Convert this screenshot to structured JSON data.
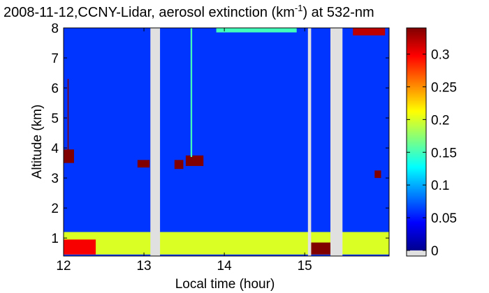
{
  "chart_data": {
    "type": "heatmap",
    "title": {
      "prefix": "2008-11-12,CCNY-Lidar, aerosol extinction (km",
      "superscript": "-1",
      "suffix": ") at 532-nm"
    },
    "xlabel": "Local time (hour)",
    "ylabel": "Altitude (km)",
    "xlim": [
      12,
      16.05
    ],
    "ylim": [
      0.4,
      8
    ],
    "xticks": [
      "12",
      "13",
      "14",
      "15"
    ],
    "yticks": [
      "1",
      "2",
      "3",
      "4",
      "5",
      "6",
      "7",
      "8"
    ],
    "grid": false,
    "colormap": "jet",
    "colorbar": {
      "range": [
        0,
        0.34
      ],
      "ticks": [
        "0",
        "0.05",
        "0.1",
        "0.15",
        "0.2",
        "0.25",
        "0.3"
      ]
    },
    "background_value": 0.06,
    "missing_data_hours": [
      [
        13.08,
        13.2
      ],
      [
        15.04,
        15.08
      ],
      [
        15.32,
        15.47
      ]
    ],
    "features": [
      {
        "name": "boundary layer",
        "time": [
          12.0,
          16.05
        ],
        "altitude": [
          0.45,
          1.2
        ],
        "value": 0.2
      },
      {
        "name": "surface aerosol 12.0-12.4",
        "time": [
          12.0,
          12.4
        ],
        "altitude": [
          0.45,
          0.95
        ],
        "value": 0.3
      },
      {
        "name": "surface aerosol 15.08-15.32",
        "time": [
          15.08,
          15.32
        ],
        "altitude": [
          0.45,
          0.85
        ],
        "value": 0.34
      },
      {
        "name": "cloud 12.0",
        "time": [
          12.0,
          12.13
        ],
        "altitude": [
          3.5,
          3.95
        ],
        "value": 0.34
      },
      {
        "name": "cloud 12.94",
        "time": [
          12.92,
          13.07
        ],
        "altitude": [
          3.35,
          3.6
        ],
        "value": 0.34
      },
      {
        "name": "cloud 13.4",
        "time": [
          13.38,
          13.49
        ],
        "altitude": [
          3.3,
          3.6
        ],
        "value": 0.34
      },
      {
        "name": "cloud 13.6",
        "time": [
          13.52,
          13.74
        ],
        "altitude": [
          3.4,
          3.75
        ],
        "value": 0.34
      },
      {
        "name": "cloud 15.9",
        "time": [
          15.87,
          15.95
        ],
        "altitude": [
          3.0,
          3.25
        ],
        "value": 0.34
      },
      {
        "name": "cirrus 15.6-16.0",
        "time": [
          15.6,
          16.0
        ],
        "altitude": [
          7.75,
          8.0
        ],
        "value": 0.32
      },
      {
        "name": "high thin layer",
        "time": [
          13.9,
          14.9
        ],
        "altitude": [
          7.85,
          8.0
        ],
        "value": 0.15
      },
      {
        "name": "vertical streak 13.6",
        "time": [
          13.58,
          13.6
        ],
        "altitude": [
          3.7,
          8.0
        ],
        "value": 0.15
      },
      {
        "name": "vertical streak 12.05",
        "time": [
          12.05,
          12.06
        ],
        "altitude": [
          3.8,
          6.3
        ],
        "value": 0.34
      }
    ]
  },
  "colors": {
    "missing": "#e0e0e0",
    "frame": "#000000"
  }
}
